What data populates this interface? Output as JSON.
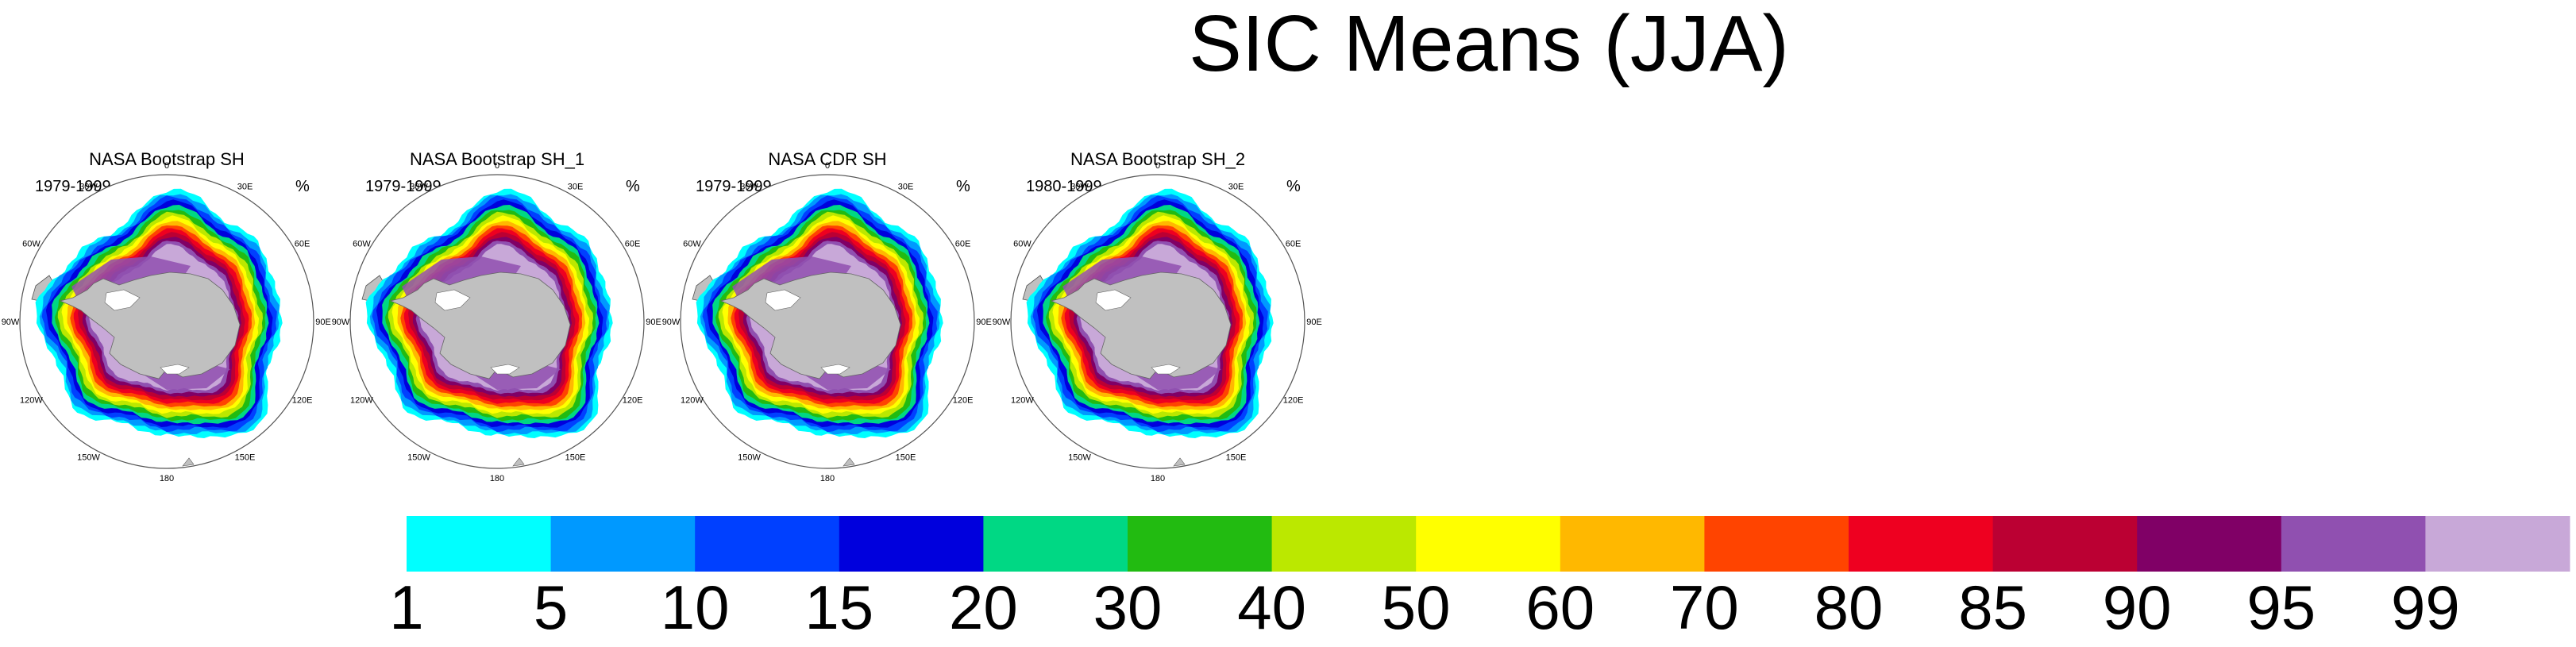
{
  "title": "SIC Means (JJA)",
  "panels": [
    {
      "title": "NASA Bootstrap SH",
      "period": "1979-1999",
      "unit": "%"
    },
    {
      "title": "NASA Bootstrap SH_1",
      "period": "1979-1999",
      "unit": "%"
    },
    {
      "title": "NASA CDR SH",
      "period": "1979-1999",
      "unit": "%"
    },
    {
      "title": "NASA Bootstrap SH_2",
      "period": "1980-1999",
      "unit": "%"
    }
  ],
  "longitude_labels": [
    "0",
    "30E",
    "60E",
    "90E",
    "120E",
    "150E",
    "180",
    "150W",
    "120W",
    "90W",
    "60W",
    "30W"
  ],
  "colorbar": {
    "labels": [
      "1",
      "5",
      "10",
      "15",
      "20",
      "30",
      "40",
      "50",
      "60",
      "70",
      "80",
      "85",
      "90",
      "95",
      "99"
    ],
    "colors": [
      "#00ffff",
      "#0099ff",
      "#0040ff",
      "#0000dd",
      "#00d884",
      "#22bb11",
      "#bbe800",
      "#ffff00",
      "#ffb800",
      "#ff4400",
      "#ee0020",
      "#bb0033",
      "#800066",
      "#9050b0",
      "#c8a8d8"
    ]
  },
  "land_color": "#c0c0c0",
  "ocean_color": "#ffffff"
}
